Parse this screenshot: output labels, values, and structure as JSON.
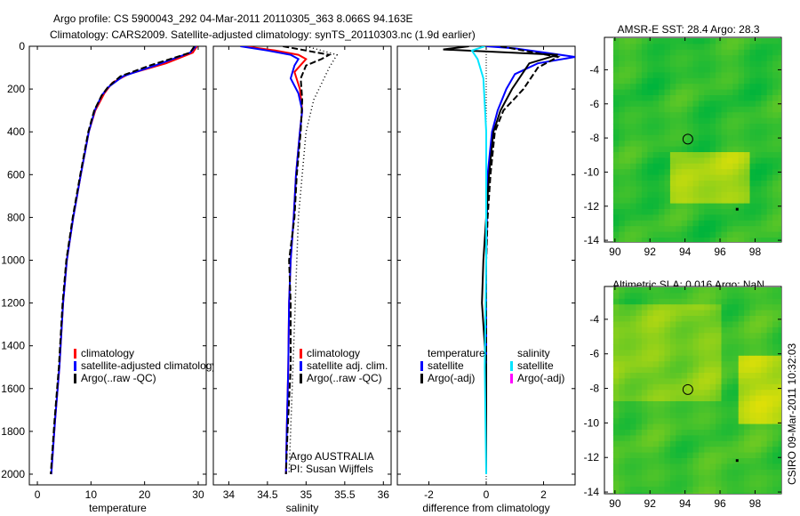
{
  "chart_data": {
    "type": "line",
    "title_line1": "Argo profile: CS 5900043_292 04-Mar-2011 20110305_363 8.066S 94.163E",
    "title_line2": "Climatology: CARS2009. Satellite-adjusted climatology: synTS_20110303.nc (1.9d earlier)",
    "depth_axis": {
      "ylim": [
        0,
        2050
      ],
      "ticks": [
        0,
        200,
        400,
        600,
        800,
        1000,
        1200,
        1400,
        1600,
        1800,
        2000
      ],
      "reversed": true
    },
    "panels": [
      {
        "id": "temperature",
        "xlabel": "temperature",
        "xlim": [
          -1.5,
          31.5
        ],
        "xticks": [
          0,
          10,
          20,
          30
        ],
        "legend": [
          {
            "label": "climatology",
            "color": "#ff0000"
          },
          {
            "label": "satellite-adjusted climatology",
            "color": "#0000ff"
          },
          {
            "label": "Argo(..raw -QC)",
            "color": "#000000"
          }
        ],
        "series": [
          {
            "name": "climatology",
            "color": "#ff0000",
            "style": "solid",
            "points": [
              [
                29.8,
                0
              ],
              [
                29,
                30
              ],
              [
                24,
                80
              ],
              [
                17,
                130
              ],
              [
                14,
                170
              ],
              [
                12.5,
                220
              ],
              [
                10.8,
                300
              ],
              [
                9.6,
                400
              ],
              [
                8.1,
                600
              ],
              [
                6.7,
                800
              ],
              [
                5.5,
                1000
              ],
              [
                4.8,
                1200
              ],
              [
                4.1,
                1500
              ],
              [
                3.3,
                1750
              ],
              [
                2.6,
                2000
              ]
            ]
          },
          {
            "name": "satellite-adjusted climatology",
            "color": "#0000ff",
            "style": "solid",
            "points": [
              [
                29.6,
                0
              ],
              [
                28.5,
                30
              ],
              [
                22,
                90
              ],
              [
                16,
                140
              ],
              [
                13.3,
                190
              ],
              [
                12,
                230
              ],
              [
                10.7,
                300
              ],
              [
                9.6,
                400
              ],
              [
                8.1,
                600
              ],
              [
                6.7,
                800
              ],
              [
                5.5,
                1000
              ],
              [
                4.8,
                1200
              ],
              [
                4.1,
                1500
              ],
              [
                3.3,
                1750
              ],
              [
                2.6,
                2000
              ]
            ]
          },
          {
            "name": "Argo raw",
            "color": "#000000",
            "style": "dashed",
            "points": [
              [
                29.3,
                0
              ],
              [
                28.5,
                30
              ],
              [
                21,
                90
              ],
              [
                15.5,
                140
              ],
              [
                13.2,
                190
              ],
              [
                12,
                230
              ],
              [
                10.6,
                300
              ],
              [
                9.5,
                400
              ],
              [
                8,
                600
              ],
              [
                6.6,
                800
              ],
              [
                5.4,
                1000
              ],
              [
                4.7,
                1200
              ],
              [
                4,
                1500
              ],
              [
                3.2,
                1750
              ],
              [
                2.5,
                2000
              ]
            ]
          }
        ]
      },
      {
        "id": "salinity",
        "xlabel": "salinity",
        "xlim": [
          33.8,
          36.1
        ],
        "xticks": [
          34,
          34.5,
          35,
          35.5,
          36
        ],
        "xticklabels": [
          "34",
          "34.5",
          "35",
          "35.5",
          "36"
        ],
        "legend": [
          {
            "label": "climatology",
            "color": "#ff0000"
          },
          {
            "label": "satellite adj. clim.",
            "color": "#0000ff"
          },
          {
            "label": "Argo(..raw -QC)",
            "color": "#000000"
          }
        ],
        "annotation": [
          "Argo AUSTRALIA",
          "PI: Susan Wijffels"
        ],
        "series": [
          {
            "name": "climatology",
            "color": "#ff0000",
            "style": "solid",
            "points": [
              [
                34.2,
                0
              ],
              [
                34.6,
                20
              ],
              [
                34.9,
                40
              ],
              [
                35.0,
                60
              ],
              [
                34.95,
                80
              ],
              [
                34.85,
                120
              ],
              [
                34.92,
                200
              ],
              [
                34.95,
                300
              ],
              [
                34.92,
                400
              ],
              [
                34.87,
                600
              ],
              [
                34.84,
                800
              ],
              [
                34.8,
                1000
              ],
              [
                34.78,
                1200
              ],
              [
                34.77,
                1500
              ],
              [
                34.75,
                1800
              ],
              [
                34.74,
                2000
              ]
            ]
          },
          {
            "name": "satellite-adjusted climatology",
            "color": "#0000ff",
            "style": "solid",
            "points": [
              [
                34.15,
                0
              ],
              [
                34.5,
                20
              ],
              [
                34.8,
                40
              ],
              [
                34.9,
                60
              ],
              [
                34.85,
                90
              ],
              [
                34.8,
                150
              ],
              [
                34.9,
                220
              ],
              [
                34.95,
                300
              ],
              [
                34.92,
                400
              ],
              [
                34.87,
                600
              ],
              [
                34.84,
                800
              ],
              [
                34.8,
                1000
              ],
              [
                34.78,
                1200
              ],
              [
                34.77,
                1500
              ],
              [
                34.75,
                1800
              ],
              [
                34.74,
                2000
              ]
            ]
          },
          {
            "name": "Argo raw",
            "color": "#000000",
            "style": "dashed",
            "points": [
              [
                34.7,
                0
              ],
              [
                35.0,
                20
              ],
              [
                35.3,
                40
              ],
              [
                35.2,
                60
              ],
              [
                35.0,
                90
              ],
              [
                34.93,
                150
              ],
              [
                34.95,
                250
              ],
              [
                34.93,
                400
              ],
              [
                34.88,
                600
              ],
              [
                34.85,
                800
              ],
              [
                34.78,
                1000
              ],
              [
                34.8,
                1200
              ],
              [
                34.8,
                1500
              ],
              [
                34.76,
                1800
              ],
              [
                34.74,
                2000
              ]
            ]
          },
          {
            "name": "Argo raw dotted",
            "color": "#000000",
            "style": "dotted",
            "points": [
              [
                35.0,
                0
              ],
              [
                35.4,
                40
              ],
              [
                35.3,
                100
              ],
              [
                35.1,
                250
              ],
              [
                35.0,
                400
              ],
              [
                34.95,
                600
              ],
              [
                34.9,
                800
              ],
              [
                34.88,
                1000
              ],
              [
                34.85,
                1300
              ],
              [
                34.82,
                1600
              ],
              [
                34.78,
                2000
              ]
            ]
          }
        ]
      },
      {
        "id": "difference",
        "xlabel": "difference from climatology",
        "xlim": [
          -3.1,
          3.1
        ],
        "xticks": [
          -2,
          0,
          2
        ],
        "legend_temperature_header": "temperature",
        "legend_salinity_header": "salinity",
        "legend": [
          {
            "group": "temperature",
            "label": "satellite",
            "color": "#0000ff"
          },
          {
            "group": "temperature",
            "label": "Argo(-adj)",
            "color": "#000000"
          },
          {
            "group": "salinity",
            "label": "satellite",
            "color": "#00e5ff"
          },
          {
            "group": "salinity",
            "label": "Argo(-adj)",
            "color": "#ff00ff"
          }
        ],
        "series": [
          {
            "name": "temperature satellite",
            "color": "#0000ff",
            "style": "solid",
            "points": [
              [
                0,
                0
              ],
              [
                1,
                10
              ],
              [
                3.1,
                50
              ],
              [
                1.8,
                80
              ],
              [
                1.0,
                130
              ],
              [
                0.7,
                200
              ],
              [
                0.4,
                300
              ],
              [
                0.2,
                400
              ],
              [
                0.05,
                600
              ],
              [
                0,
                1000
              ],
              [
                0,
                1500
              ],
              [
                0,
                2000
              ]
            ]
          },
          {
            "name": "temperature Argo",
            "color": "#000000",
            "style": "solid",
            "points": [
              [
                -0.6,
                0
              ],
              [
                -1.5,
                15
              ],
              [
                2.5,
                40
              ],
              [
                1.5,
                80
              ],
              [
                1.3,
                120
              ],
              [
                0.9,
                200
              ],
              [
                0.5,
                300
              ],
              [
                0.25,
                400
              ],
              [
                0.1,
                600
              ],
              [
                -0.1,
                1000
              ],
              [
                -0.15,
                1200
              ],
              [
                0,
                1500
              ],
              [
                0,
                2000
              ]
            ]
          },
          {
            "name": "temperature Argo dashed",
            "color": "#000000",
            "style": "dashed",
            "points": [
              [
                0.5,
                0
              ],
              [
                2.5,
                50
              ],
              [
                1.8,
                100
              ],
              [
                1.3,
                200
              ],
              [
                0.6,
                300
              ],
              [
                0.3,
                400
              ],
              [
                0.15,
                600
              ],
              [
                0.05,
                800
              ],
              [
                0,
                1000
              ],
              [
                0,
                2000
              ]
            ]
          },
          {
            "name": "salinity satellite",
            "color": "#00e5ff",
            "style": "solid",
            "points": [
              [
                -0.05,
                0
              ],
              [
                -0.5,
                20
              ],
              [
                -0.3,
                60
              ],
              [
                -0.1,
                150
              ],
              [
                0,
                400
              ],
              [
                0,
                1000
              ],
              [
                -0.05,
                1500
              ],
              [
                0,
                2000
              ]
            ]
          }
        ]
      }
    ],
    "maps": [
      {
        "title": "AMSR-E SST: 28.4 Argo: 28.3",
        "xticks": [
          90,
          92,
          94,
          96,
          98
        ],
        "yticks": [
          -4,
          -6,
          -8,
          -10,
          -12,
          -14
        ],
        "xlim": [
          89.4,
          99.5
        ],
        "ylim": [
          -14.1,
          -2.1
        ],
        "argo_position": [
          94.163,
          -8.066
        ],
        "bias": 0.0
      },
      {
        "title": "Altimetric SLA: 0.016 Argo: NaN",
        "xticks": [
          90,
          92,
          94,
          96,
          98
        ],
        "yticks": [
          -4,
          -6,
          -8,
          -10,
          -12,
          -14
        ],
        "xlim": [
          89.4,
          99.5
        ],
        "ylim": [
          -14.1,
          -2.1
        ],
        "argo_position": [
          94.163,
          -8.066
        ],
        "bias": 0.35
      }
    ],
    "footer_stamp": "CSIRO 09-Mar-2011 10:32:03"
  }
}
